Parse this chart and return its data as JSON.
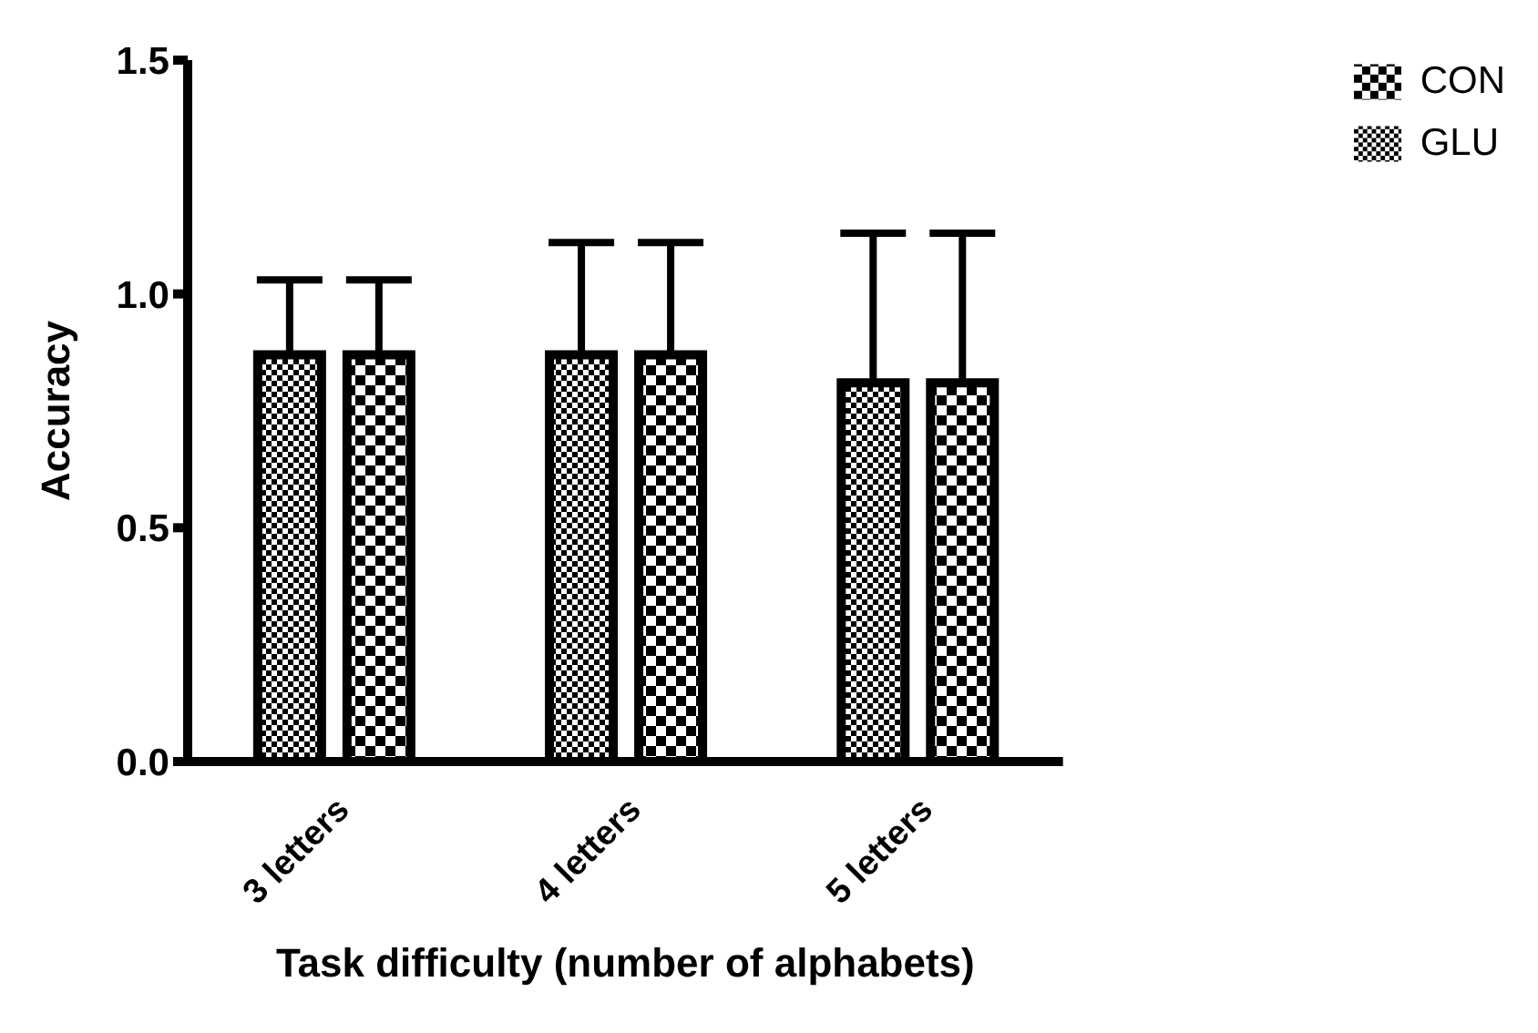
{
  "chart_data": {
    "type": "bar",
    "xlabel": "Task difficulty (number of alphabets)",
    "ylabel": "Accuracy",
    "categories": [
      "3 letters",
      "4 letters",
      "5 letters"
    ],
    "series": [
      {
        "name": "GLU",
        "color": "#000000",
        "values": [
          0.87,
          0.87,
          0.81
        ],
        "errors": [
          [
            0.87,
            1.03
          ],
          [
            0.87,
            1.11
          ],
          [
            0.81,
            1.13
          ]
        ]
      },
      {
        "name": "CON",
        "color": "#000000",
        "values": [
          0.87,
          0.87,
          0.81
        ],
        "errors": [
          [
            0.87,
            1.03
          ],
          [
            0.87,
            1.11
          ],
          [
            0.81,
            1.13
          ]
        ]
      }
    ],
    "ylim": [
      0,
      1.5
    ],
    "yticks": [
      {
        "value": 0,
        "label": "0.0"
      },
      0.5,
      {
        "value": 1,
        "label": "1.0"
      },
      1.5
    ],
    "grid": false,
    "legend": "top right"
  }
}
